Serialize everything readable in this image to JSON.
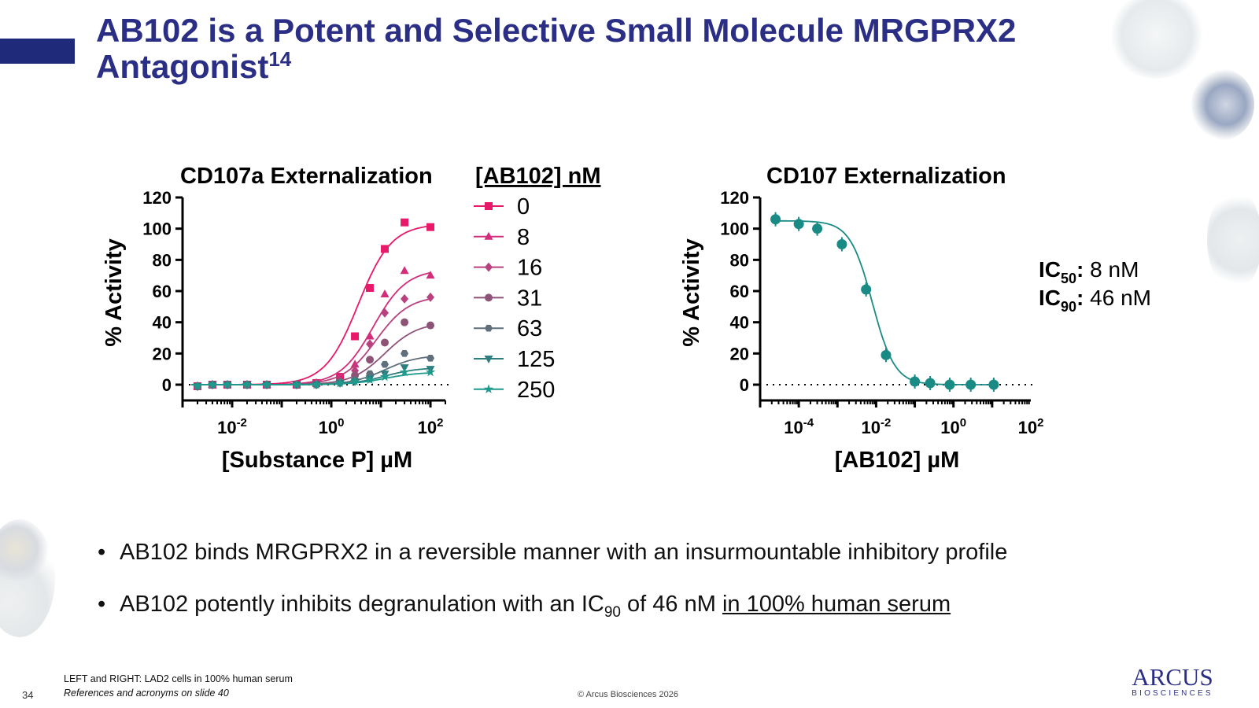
{
  "slide": {
    "title_main": "AB102 is a Potent and Selective Small Molecule MRGPRX2 Antagonist",
    "title_sup": "14",
    "page_number": "34",
    "footnote_1": "LEFT and RIGHT: LAD2 cells in 100% human serum",
    "footnote_2": "References and acronyms on slide 40",
    "copyright": "© Arcus Biosciences 2026",
    "logo_main": "ARCUS",
    "logo_sub": "BIOSCIENCES",
    "accent_color": "#1f2a7a",
    "title_color": "#2b2e85"
  },
  "bullets": [
    {
      "pre": "AB102 binds MRGPRX2 in a reversible manner with an insurmountable inhibitory profile"
    },
    {
      "pre": "AB102 potently inhibits degranulation with an IC",
      "sub": "90",
      "mid": " of 46 nM ",
      "underlined": "in 100% human serum"
    }
  ],
  "chart_data": [
    {
      "type": "scatter",
      "title": "CD107a Externalization",
      "xlabel": "[Substance P] µM",
      "ylabel": "% Activity",
      "x_scale": "log10",
      "xlim": [
        0.001,
        200
      ],
      "ylim": [
        0,
        120
      ],
      "y_ticks": [
        "0",
        "20",
        "40",
        "60",
        "80",
        "100",
        "120"
      ],
      "x_ticks": [
        {
          "base": "10",
          "exp": "-2",
          "value": 0.01
        },
        {
          "base": "10",
          "exp": "0",
          "value": 1
        },
        {
          "base": "10",
          "exp": "2",
          "value": 100
        }
      ],
      "reference_line_y": 0,
      "legend_title": "[AB102] nM",
      "legend_placement": "right",
      "x": [
        0.002,
        0.004,
        0.008,
        0.02,
        0.05,
        0.2,
        0.5,
        1.5,
        3,
        6,
        12,
        30,
        100
      ],
      "series": [
        {
          "name": "0",
          "color": "#e8186a",
          "marker": "square",
          "values": [
            -1,
            0,
            0,
            0,
            0,
            0,
            1,
            5,
            31,
            62,
            87,
            104,
            101
          ],
          "fit": {
            "bottom": 0,
            "top": 103,
            "ec50": 3.5,
            "hill": 1.3
          }
        },
        {
          "name": "8",
          "color": "#d12d7a",
          "marker": "triangle",
          "values": [
            -1,
            0,
            0,
            0,
            0,
            0,
            1,
            3,
            13,
            31,
            58,
            73,
            70
          ],
          "fit": {
            "bottom": 0,
            "top": 74,
            "ec50": 7,
            "hill": 1.3
          }
        },
        {
          "name": "16",
          "color": "#b8417f",
          "marker": "diamond",
          "values": [
            -1,
            0,
            0,
            0,
            0,
            0,
            1,
            2,
            9,
            26,
            46,
            55,
            56
          ],
          "fit": {
            "bottom": 0,
            "top": 57,
            "ec50": 8,
            "hill": 1.3
          }
        },
        {
          "name": "31",
          "color": "#8e5478",
          "marker": "circle",
          "values": [
            -1,
            0,
            0,
            0,
            0,
            0,
            0,
            2,
            6,
            16,
            27,
            40,
            38
          ],
          "fit": {
            "bottom": 0,
            "top": 40,
            "ec50": 12,
            "hill": 1.3
          }
        },
        {
          "name": "63",
          "color": "#5f6f7c",
          "marker": "hexagon",
          "values": [
            -1,
            0,
            0,
            0,
            0,
            0,
            0,
            1,
            3,
            7,
            13,
            20,
            17
          ],
          "fit": {
            "bottom": 0,
            "top": 19,
            "ec50": 12,
            "hill": 1.3
          }
        },
        {
          "name": "125",
          "color": "#2e7d7f",
          "marker": "triangle-down",
          "values": [
            -1,
            0,
            0,
            0,
            0,
            0,
            0,
            1,
            2,
            4,
            7,
            11,
            10
          ],
          "fit": {
            "bottom": 0,
            "top": 11,
            "ec50": 12,
            "hill": 1.3
          }
        },
        {
          "name": "250",
          "color": "#1d9a8c",
          "marker": "star",
          "values": [
            -1,
            0,
            0,
            0,
            0,
            0,
            0,
            1,
            2,
            3,
            5,
            8,
            8
          ],
          "fit": {
            "bottom": 0,
            "top": 8,
            "ec50": 12,
            "hill": 1.3
          }
        }
      ]
    },
    {
      "type": "scatter",
      "title": "CD107 Externalization",
      "xlabel": "[AB102] µM",
      "ylabel": "% Activity",
      "x_scale": "log10",
      "xlim": [
        1e-05,
        100
      ],
      "ylim": [
        0,
        120
      ],
      "y_ticks": [
        "0",
        "20",
        "40",
        "60",
        "80",
        "100",
        "120"
      ],
      "x_ticks": [
        {
          "base": "10",
          "exp": "-4",
          "value": 0.0001
        },
        {
          "base": "10",
          "exp": "-2",
          "value": 0.01
        },
        {
          "base": "10",
          "exp": "0",
          "value": 1
        },
        {
          "base": "10",
          "exp": "2",
          "value": 100
        }
      ],
      "reference_line_y": 0,
      "series": [
        {
          "color": "#1a8a85",
          "marker": "circle",
          "x": [
            2.5e-05,
            0.0001,
            0.0003,
            0.0013,
            0.0055,
            0.018,
            0.1,
            0.25,
            0.8,
            2.8,
            11
          ],
          "values": [
            106,
            103,
            100,
            90,
            61,
            19,
            2,
            1,
            0,
            0,
            0
          ],
          "fit": {
            "top": 105,
            "bottom": 0,
            "ic50": 0.008,
            "hill": -1.5
          }
        }
      ],
      "annotations": [
        {
          "label": "IC",
          "sub": "50",
          "value": ": 8 nM"
        },
        {
          "label": "IC",
          "sub": "90",
          "value": ": 46 nM"
        }
      ]
    }
  ]
}
